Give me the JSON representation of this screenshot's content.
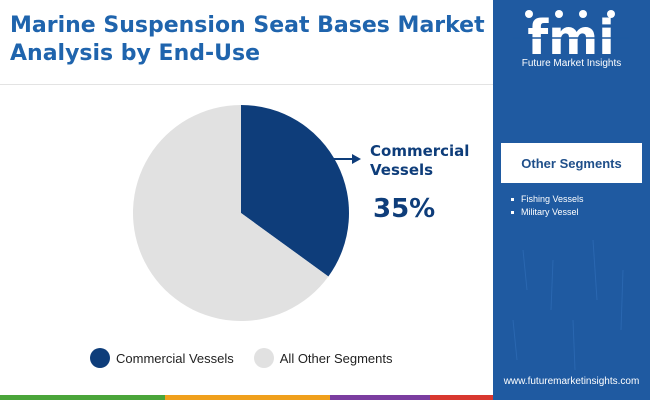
{
  "title": "Marine Suspension Seat Bases Market Analysis by End-Use",
  "callout": {
    "label": "Commercial Vessels",
    "value": "35%"
  },
  "legend": [
    {
      "label": "Commercial Vessels",
      "color": "#0e3d7a"
    },
    {
      "label": "All Other Segments",
      "color": "#e1e1e1"
    }
  ],
  "sidebar": {
    "brand": "fmi",
    "brand_name": "Future Market Insights",
    "segments_title": "Other Segments",
    "segments": [
      "Fishing Vessels",
      "Military Vessel"
    ],
    "website": "www.futuremarketinsights.com",
    "background_color": "#1f5aa1"
  },
  "accent_bar_colors": [
    "#4aa53a",
    "#f0a01c",
    "#7b3da0",
    "#d9382f"
  ],
  "chart_data": {
    "type": "pie",
    "title": "Marine Suspension Seat Bases Market Analysis by End-Use",
    "categories": [
      "Commercial Vessels",
      "All Other Segments"
    ],
    "values": [
      35,
      65
    ],
    "unit": "%",
    "colors": [
      "#0e3d7a",
      "#e1e1e1"
    ],
    "start_angle": "12 o'clock, clockwise",
    "legend_position": "bottom"
  }
}
